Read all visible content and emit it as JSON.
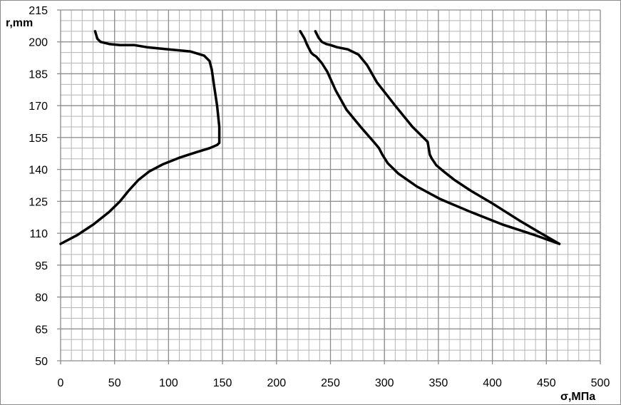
{
  "chart_data": {
    "type": "line",
    "xlabel": "σ,МПа",
    "ylabel": "r,mm",
    "xlim": [
      0,
      500
    ],
    "ylim": [
      50,
      215
    ],
    "x_ticks": [
      "0",
      "50",
      "100",
      "150",
      "200",
      "250",
      "300",
      "350",
      "400",
      "450",
      "500"
    ],
    "y_ticks": [
      "215",
      "200",
      "185",
      "170",
      "155",
      "140",
      "125",
      "110",
      "95",
      "80",
      "65",
      "50"
    ],
    "x_minor_step": 10,
    "y_minor_step": 5,
    "grid": true,
    "colors": {
      "grid_major": "#8c8c8c",
      "grid_minor": "#b4b4b4",
      "line": "#000000"
    },
    "series": [
      {
        "points": [
          [
            0,
            105
          ],
          [
            15,
            109
          ],
          [
            30,
            114
          ],
          [
            45,
            120
          ],
          [
            55,
            125
          ],
          [
            63,
            130
          ],
          [
            72,
            135
          ],
          [
            82,
            139
          ],
          [
            95,
            142.5
          ],
          [
            110,
            145.5
          ],
          [
            125,
            148
          ],
          [
            138,
            150
          ],
          [
            145,
            151.5
          ],
          [
            147,
            152.5
          ],
          [
            147,
            154
          ],
          [
            147,
            160
          ],
          [
            145,
            170
          ],
          [
            142,
            180
          ],
          [
            140,
            187
          ],
          [
            138,
            191
          ],
          [
            133,
            193.5
          ],
          [
            120,
            195.5
          ],
          [
            100,
            196.5
          ],
          [
            80,
            197.5
          ],
          [
            68,
            198.5
          ],
          [
            55,
            198.5
          ],
          [
            45,
            199
          ],
          [
            37,
            200
          ],
          [
            34,
            201.5
          ],
          [
            32,
            205
          ]
        ]
      },
      {
        "points": [
          [
            462,
            105
          ],
          [
            440,
            109
          ],
          [
            410,
            114
          ],
          [
            380,
            120
          ],
          [
            352,
            126
          ],
          [
            330,
            132
          ],
          [
            313,
            138
          ],
          [
            303,
            143
          ],
          [
            298,
            147
          ],
          [
            295,
            150
          ],
          [
            290,
            153
          ],
          [
            278,
            160
          ],
          [
            265,
            168
          ],
          [
            255,
            177
          ],
          [
            247,
            186
          ],
          [
            242,
            190
          ],
          [
            237,
            193
          ],
          [
            234,
            194
          ],
          [
            232,
            195
          ],
          [
            230,
            197
          ],
          [
            228,
            199
          ],
          [
            226,
            201.5
          ],
          [
            222,
            205
          ]
        ]
      },
      {
        "points": [
          [
            462,
            105
          ],
          [
            445,
            110
          ],
          [
            425,
            116
          ],
          [
            400,
            124
          ],
          [
            380,
            130
          ],
          [
            365,
            135
          ],
          [
            355,
            139
          ],
          [
            348,
            142
          ],
          [
            344,
            145
          ],
          [
            342,
            147
          ],
          [
            341,
            150
          ],
          [
            340,
            153
          ],
          [
            336,
            155
          ],
          [
            326,
            160
          ],
          [
            310,
            170
          ],
          [
            293,
            181
          ],
          [
            284,
            189
          ],
          [
            276,
            194
          ],
          [
            266,
            196.5
          ],
          [
            256,
            197.5
          ],
          [
            250,
            198.5
          ],
          [
            246,
            199
          ],
          [
            242,
            200
          ],
          [
            239,
            202
          ],
          [
            236,
            205
          ]
        ]
      }
    ]
  }
}
